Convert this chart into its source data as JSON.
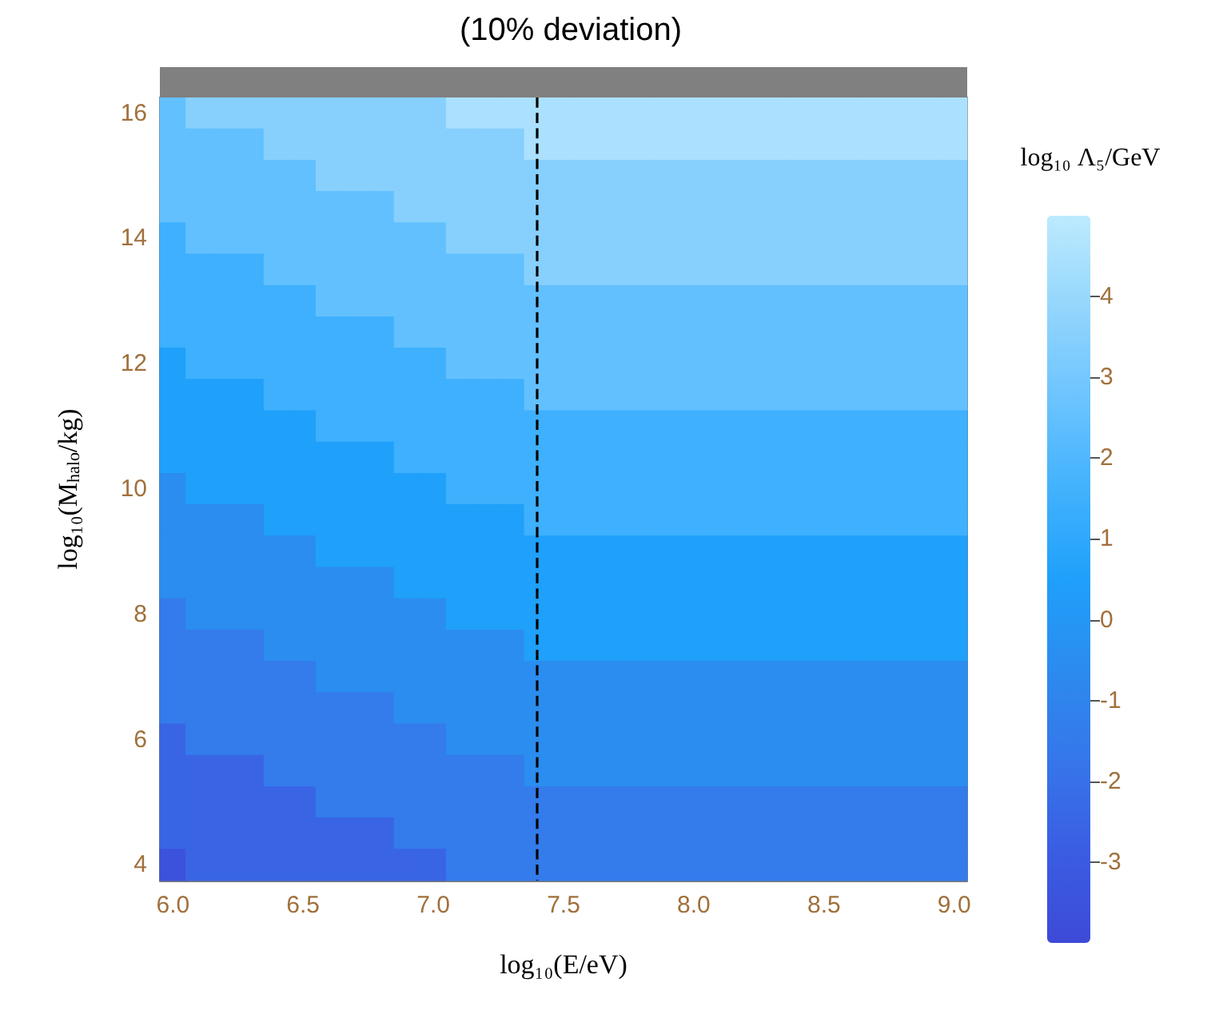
{
  "chart_data": {
    "type": "heatmap",
    "title": "(10% deviation)",
    "xlabel": "log₁₀(E/eV)",
    "ylabel": "log₁₀(M$_{halo}$/kg)",
    "clabel": "log₁₀ Λ₅/GeV",
    "categories": [
      "6.0",
      null,
      null,
      null,
      null,
      "6.5",
      null,
      null,
      null,
      null,
      "7.0",
      null,
      null,
      null,
      null,
      "7.5",
      null,
      null,
      null,
      null,
      "8.0",
      null,
      null,
      null,
      null,
      "8.5",
      null,
      null,
      null,
      null,
      "9.0"
    ],
    "y_categories": [
      "16",
      null,
      null,
      null,
      "14",
      null,
      null,
      null,
      "12",
      null,
      null,
      null,
      "10",
      null,
      null,
      null,
      "8",
      null,
      null,
      null,
      "6",
      null,
      null,
      null,
      "4"
    ],
    "clim": [
      -4,
      5
    ],
    "cticks": [
      -3,
      -2,
      -1,
      0,
      1,
      2,
      3,
      4
    ],
    "colors": [
      "#3d4ad8",
      "#3a5de2",
      "#3676ea",
      "#2c8bee",
      "#1fa0fb",
      "#42b2fd",
      "#6cc4fe",
      "#94d6fd",
      "#bdeafe"
    ],
    "cells": [
      [
        2.5,
        3.5,
        3.5,
        3.5,
        3.5,
        3.5,
        3.5,
        3.5,
        3.5,
        3.5,
        3.5,
        4.5,
        4.5,
        4.5,
        4.5,
        4.5,
        4.5,
        4.5,
        4.5,
        4.5,
        4.5,
        4.5,
        4.5,
        4.5,
        4.5,
        4.5,
        4.5,
        4.5,
        4.5,
        4.5,
        4.5
      ],
      [
        2.5,
        2.5,
        2.5,
        2.5,
        3.5,
        3.5,
        3.5,
        3.5,
        3.5,
        3.5,
        3.5,
        3.5,
        3.5,
        3.5,
        4.5,
        4.5,
        4.5,
        4.5,
        4.5,
        4.5,
        4.5,
        4.5,
        4.5,
        4.5,
        4.5,
        4.5,
        4.5,
        4.5,
        4.5,
        4.5,
        4.5
      ],
      [
        2.5,
        2.5,
        2.5,
        2.5,
        2.5,
        2.5,
        3.5,
        3.5,
        3.5,
        3.5,
        3.5,
        3.5,
        3.5,
        3.5,
        3.5,
        3.5,
        3.5,
        3.5,
        3.5,
        3.5,
        3.5,
        3.5,
        3.5,
        3.5,
        3.5,
        3.5,
        3.5,
        3.5,
        3.5,
        3.5,
        3.5
      ],
      [
        2.5,
        2.5,
        2.5,
        2.5,
        2.5,
        2.5,
        2.5,
        2.5,
        2.5,
        3.5,
        3.5,
        3.5,
        3.5,
        3.5,
        3.5,
        3.5,
        3.5,
        3.5,
        3.5,
        3.5,
        3.5,
        3.5,
        3.5,
        3.5,
        3.5,
        3.5,
        3.5,
        3.5,
        3.5,
        3.5,
        3.5
      ],
      [
        1.5,
        2.5,
        2.5,
        2.5,
        2.5,
        2.5,
        2.5,
        2.5,
        2.5,
        2.5,
        2.5,
        3.5,
        3.5,
        3.5,
        3.5,
        3.5,
        3.5,
        3.5,
        3.5,
        3.5,
        3.5,
        3.5,
        3.5,
        3.5,
        3.5,
        3.5,
        3.5,
        3.5,
        3.5,
        3.5,
        3.5
      ],
      [
        1.5,
        1.5,
        1.5,
        1.5,
        2.5,
        2.5,
        2.5,
        2.5,
        2.5,
        2.5,
        2.5,
        2.5,
        2.5,
        2.5,
        3.5,
        3.5,
        3.5,
        3.5,
        3.5,
        3.5,
        3.5,
        3.5,
        3.5,
        3.5,
        3.5,
        3.5,
        3.5,
        3.5,
        3.5,
        3.5,
        3.5
      ],
      [
        1.5,
        1.5,
        1.5,
        1.5,
        1.5,
        1.5,
        2.5,
        2.5,
        2.5,
        2.5,
        2.5,
        2.5,
        2.5,
        2.5,
        2.5,
        2.5,
        2.5,
        2.5,
        2.5,
        2.5,
        2.5,
        2.5,
        2.5,
        2.5,
        2.5,
        2.5,
        2.5,
        2.5,
        2.5,
        2.5,
        2.5
      ],
      [
        1.5,
        1.5,
        1.5,
        1.5,
        1.5,
        1.5,
        1.5,
        1.5,
        1.5,
        2.5,
        2.5,
        2.5,
        2.5,
        2.5,
        2.5,
        2.5,
        2.5,
        2.5,
        2.5,
        2.5,
        2.5,
        2.5,
        2.5,
        2.5,
        2.5,
        2.5,
        2.5,
        2.5,
        2.5,
        2.5,
        2.5
      ],
      [
        0.5,
        1.5,
        1.5,
        1.5,
        1.5,
        1.5,
        1.5,
        1.5,
        1.5,
        1.5,
        1.5,
        2.5,
        2.5,
        2.5,
        2.5,
        2.5,
        2.5,
        2.5,
        2.5,
        2.5,
        2.5,
        2.5,
        2.5,
        2.5,
        2.5,
        2.5,
        2.5,
        2.5,
        2.5,
        2.5,
        2.5
      ],
      [
        0.5,
        0.5,
        0.5,
        0.5,
        1.5,
        1.5,
        1.5,
        1.5,
        1.5,
        1.5,
        1.5,
        1.5,
        1.5,
        1.5,
        2.5,
        2.5,
        2.5,
        2.5,
        2.5,
        2.5,
        2.5,
        2.5,
        2.5,
        2.5,
        2.5,
        2.5,
        2.5,
        2.5,
        2.5,
        2.5,
        2.5
      ],
      [
        0.5,
        0.5,
        0.5,
        0.5,
        0.5,
        0.5,
        1.5,
        1.5,
        1.5,
        1.5,
        1.5,
        1.5,
        1.5,
        1.5,
        1.5,
        1.5,
        1.5,
        1.5,
        1.5,
        1.5,
        1.5,
        1.5,
        1.5,
        1.5,
        1.5,
        1.5,
        1.5,
        1.5,
        1.5,
        1.5,
        1.5
      ],
      [
        0.5,
        0.5,
        0.5,
        0.5,
        0.5,
        0.5,
        0.5,
        0.5,
        0.5,
        1.5,
        1.5,
        1.5,
        1.5,
        1.5,
        1.5,
        1.5,
        1.5,
        1.5,
        1.5,
        1.5,
        1.5,
        1.5,
        1.5,
        1.5,
        1.5,
        1.5,
        1.5,
        1.5,
        1.5,
        1.5,
        1.5
      ],
      [
        -0.5,
        0.5,
        0.5,
        0.5,
        0.5,
        0.5,
        0.5,
        0.5,
        0.5,
        0.5,
        0.5,
        1.5,
        1.5,
        1.5,
        1.5,
        1.5,
        1.5,
        1.5,
        1.5,
        1.5,
        1.5,
        1.5,
        1.5,
        1.5,
        1.5,
        1.5,
        1.5,
        1.5,
        1.5,
        1.5,
        1.5
      ],
      [
        -0.5,
        -0.5,
        -0.5,
        -0.5,
        0.5,
        0.5,
        0.5,
        0.5,
        0.5,
        0.5,
        0.5,
        0.5,
        0.5,
        0.5,
        1.5,
        1.5,
        1.5,
        1.5,
        1.5,
        1.5,
        1.5,
        1.5,
        1.5,
        1.5,
        1.5,
        1.5,
        1.5,
        1.5,
        1.5,
        1.5,
        1.5
      ],
      [
        -0.5,
        -0.5,
        -0.5,
        -0.5,
        -0.5,
        -0.5,
        0.5,
        0.5,
        0.5,
        0.5,
        0.5,
        0.5,
        0.5,
        0.5,
        0.5,
        0.5,
        0.5,
        0.5,
        0.5,
        0.5,
        0.5,
        0.5,
        0.5,
        0.5,
        0.5,
        0.5,
        0.5,
        0.5,
        0.5,
        0.5,
        0.5
      ],
      [
        -0.5,
        -0.5,
        -0.5,
        -0.5,
        -0.5,
        -0.5,
        -0.5,
        -0.5,
        -0.5,
        0.5,
        0.5,
        0.5,
        0.5,
        0.5,
        0.5,
        0.5,
        0.5,
        0.5,
        0.5,
        0.5,
        0.5,
        0.5,
        0.5,
        0.5,
        0.5,
        0.5,
        0.5,
        0.5,
        0.5,
        0.5,
        0.5
      ],
      [
        -1.5,
        -0.5,
        -0.5,
        -0.5,
        -0.5,
        -0.5,
        -0.5,
        -0.5,
        -0.5,
        -0.5,
        -0.5,
        0.5,
        0.5,
        0.5,
        0.5,
        0.5,
        0.5,
        0.5,
        0.5,
        0.5,
        0.5,
        0.5,
        0.5,
        0.5,
        0.5,
        0.5,
        0.5,
        0.5,
        0.5,
        0.5,
        0.5
      ],
      [
        -1.5,
        -1.5,
        -1.5,
        -1.5,
        -0.5,
        -0.5,
        -0.5,
        -0.5,
        -0.5,
        -0.5,
        -0.5,
        -0.5,
        -0.5,
        -0.5,
        0.5,
        0.5,
        0.5,
        0.5,
        0.5,
        0.5,
        0.5,
        0.5,
        0.5,
        0.5,
        0.5,
        0.5,
        0.5,
        0.5,
        0.5,
        0.5,
        0.5
      ],
      [
        -1.5,
        -1.5,
        -1.5,
        -1.5,
        -1.5,
        -1.5,
        -0.5,
        -0.5,
        -0.5,
        -0.5,
        -0.5,
        -0.5,
        -0.5,
        -0.5,
        -0.5,
        -0.5,
        -0.5,
        -0.5,
        -0.5,
        -0.5,
        -0.5,
        -0.5,
        -0.5,
        -0.5,
        -0.5,
        -0.5,
        -0.5,
        -0.5,
        -0.5,
        -0.5,
        -0.5
      ],
      [
        -1.5,
        -1.5,
        -1.5,
        -1.5,
        -1.5,
        -1.5,
        -1.5,
        -1.5,
        -1.5,
        -0.5,
        -0.5,
        -0.5,
        -0.5,
        -0.5,
        -0.5,
        -0.5,
        -0.5,
        -0.5,
        -0.5,
        -0.5,
        -0.5,
        -0.5,
        -0.5,
        -0.5,
        -0.5,
        -0.5,
        -0.5,
        -0.5,
        -0.5,
        -0.5,
        -0.5
      ],
      [
        -2.5,
        -1.5,
        -1.5,
        -1.5,
        -1.5,
        -1.5,
        -1.5,
        -1.5,
        -1.5,
        -1.5,
        -1.5,
        -0.5,
        -0.5,
        -0.5,
        -0.5,
        -0.5,
        -0.5,
        -0.5,
        -0.5,
        -0.5,
        -0.5,
        -0.5,
        -0.5,
        -0.5,
        -0.5,
        -0.5,
        -0.5,
        -0.5,
        -0.5,
        -0.5,
        -0.5
      ],
      [
        -2.5,
        -2.5,
        -2.5,
        -2.5,
        -1.5,
        -1.5,
        -1.5,
        -1.5,
        -1.5,
        -1.5,
        -1.5,
        -1.5,
        -1.5,
        -1.5,
        -0.5,
        -0.5,
        -0.5,
        -0.5,
        -0.5,
        -0.5,
        -0.5,
        -0.5,
        -0.5,
        -0.5,
        -0.5,
        -0.5,
        -0.5,
        -0.5,
        -0.5,
        -0.5,
        -0.5
      ],
      [
        -2.5,
        -2.5,
        -2.5,
        -2.5,
        -2.5,
        -2.5,
        -1.5,
        -1.5,
        -1.5,
        -1.5,
        -1.5,
        -1.5,
        -1.5,
        -1.5,
        -1.5,
        -1.5,
        -1.5,
        -1.5,
        -1.5,
        -1.5,
        -1.5,
        -1.5,
        -1.5,
        -1.5,
        -1.5,
        -1.5,
        -1.5,
        -1.5,
        -1.5,
        -1.5,
        -1.5
      ],
      [
        -2.5,
        -2.5,
        -2.5,
        -2.5,
        -2.5,
        -2.5,
        -2.5,
        -2.5,
        -2.5,
        -1.5,
        -1.5,
        -1.5,
        -1.5,
        -1.5,
        -1.5,
        -1.5,
        -1.5,
        -1.5,
        -1.5,
        -1.5,
        -1.5,
        -1.5,
        -1.5,
        -1.5,
        -1.5,
        -1.5,
        -1.5,
        -1.5,
        -1.5,
        -1.5,
        -1.5
      ],
      [
        -3.5,
        -2.5,
        -2.5,
        -2.5,
        -2.5,
        -2.5,
        -2.5,
        -2.5,
        -2.5,
        -2.5,
        -2.5,
        -1.5,
        -1.5,
        -1.5,
        -1.5,
        -1.5,
        -1.5,
        -1.5,
        -1.5,
        -1.5,
        -1.5,
        -1.5,
        -1.5,
        -1.5,
        -1.5,
        -1.5,
        -1.5,
        -1.5,
        -1.5,
        -1.5,
        -1.5
      ]
    ]
  }
}
